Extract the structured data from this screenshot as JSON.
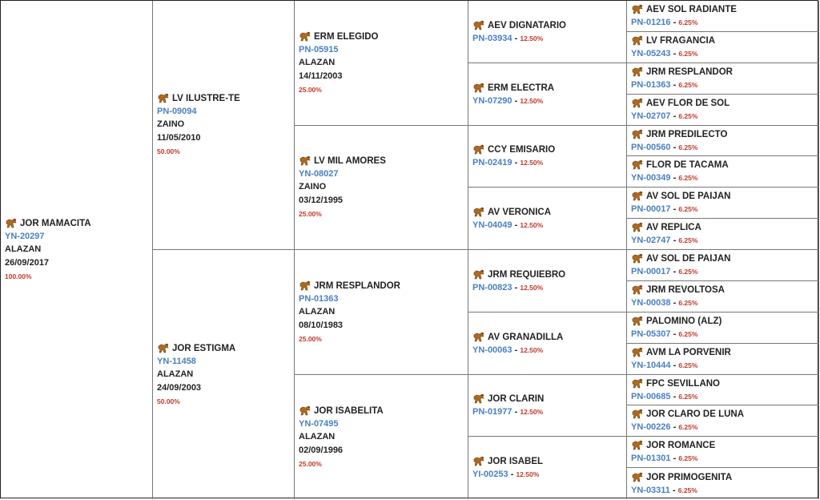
{
  "subject": {
    "name": "JOR MAMACITA",
    "reg": "YN-20297",
    "color": "ALAZAN",
    "dob": "26/09/2017",
    "pct": "100.00%"
  },
  "gen1": [
    {
      "name": "LV ILUSTRE-TE",
      "reg": "PN-09094",
      "color": "ZAINO",
      "dob": "11/05/2010",
      "pct": "50.00%"
    },
    {
      "name": "JOR ESTIGMA",
      "reg": "YN-11458",
      "color": "ALAZAN",
      "dob": "24/09/2003",
      "pct": "50.00%"
    }
  ],
  "gen2": [
    {
      "name": "ERM ELEGIDO",
      "reg": "PN-05915",
      "color": "ALAZAN",
      "dob": "14/11/2003",
      "pct": "25.00%"
    },
    {
      "name": "LV MIL AMORES",
      "reg": "YN-08027",
      "color": "ZAINO",
      "dob": "03/12/1995",
      "pct": "25.00%"
    },
    {
      "name": "JRM RESPLANDOR",
      "reg": "PN-01363",
      "color": "ALAZAN",
      "dob": "08/10/1983",
      "pct": "25.00%"
    },
    {
      "name": "JOR ISABELITA",
      "reg": "YN-07495",
      "color": "ALAZAN",
      "dob": "02/09/1996",
      "pct": "25.00%"
    }
  ],
  "gen3": [
    {
      "name": "AEV DIGNATARIO",
      "reg": "PN-03934",
      "pct": "12.50%"
    },
    {
      "name": "ERM ELECTRA",
      "reg": "YN-07290",
      "pct": "12.50%"
    },
    {
      "name": "CCY EMISARIO",
      "reg": "PN-02419",
      "pct": "12.50%"
    },
    {
      "name": "AV VERONICA",
      "reg": "YN-04049",
      "pct": "12.50%"
    },
    {
      "name": "JRM REQUIEBRO",
      "reg": "PN-00823",
      "pct": "12.50%"
    },
    {
      "name": "AV GRANADILLA",
      "reg": "YN-00063",
      "pct": "12.50%"
    },
    {
      "name": "JOR CLARIN",
      "reg": "PN-01977",
      "pct": "12.50%"
    },
    {
      "name": "JOR ISABEL",
      "reg": "YI-00253",
      "pct": "12.50%"
    }
  ],
  "gen4": [
    {
      "name": "AEV SOL RADIANTE",
      "reg": "PN-01216",
      "pct": "6.25%"
    },
    {
      "name": "LV FRAGANCIA",
      "reg": "YN-05243",
      "pct": "6.25%"
    },
    {
      "name": "JRM RESPLANDOR",
      "reg": "PN-01363",
      "pct": "6.25%"
    },
    {
      "name": "AEV FLOR DE SOL",
      "reg": "YN-02707",
      "pct": "6.25%"
    },
    {
      "name": "JRM PREDILECTO",
      "reg": "PN-00560",
      "pct": "6.25%"
    },
    {
      "name": "FLOR DE TACAMA",
      "reg": "YN-00349",
      "pct": "6.25%"
    },
    {
      "name": "AV SOL DE PAIJAN",
      "reg": "PN-00017",
      "pct": "6.25%"
    },
    {
      "name": "AV REPLICA",
      "reg": "YN-02747",
      "pct": "6.25%"
    },
    {
      "name": "AV SOL DE PAIJAN",
      "reg": "PN-00017",
      "pct": "6.25%"
    },
    {
      "name": "JRM REVOLTOSA",
      "reg": "YN-00038",
      "pct": "6.25%"
    },
    {
      "name": "PALOMINO (ALZ)",
      "reg": "PN-05307",
      "pct": "6.25%"
    },
    {
      "name": "AVM LA PORVENIR",
      "reg": "YN-10444",
      "pct": "6.25%"
    },
    {
      "name": "FPC SEVILLANO",
      "reg": "PN-00685",
      "pct": "6.25%"
    },
    {
      "name": "JOR CLARO DE LUNA",
      "reg": "YN-00226",
      "pct": "6.25%"
    },
    {
      "name": "JOR ROMANCE",
      "reg": "PN-01301",
      "pct": "6.25%"
    },
    {
      "name": "JOR PRIMOGENITA",
      "reg": "YN-03311",
      "pct": "6.25%"
    }
  ],
  "icon": "horse-icon",
  "colors": {
    "id": "#4a7fc1",
    "pct": "#c0392b",
    "text": "#222222"
  },
  "dash": "-"
}
